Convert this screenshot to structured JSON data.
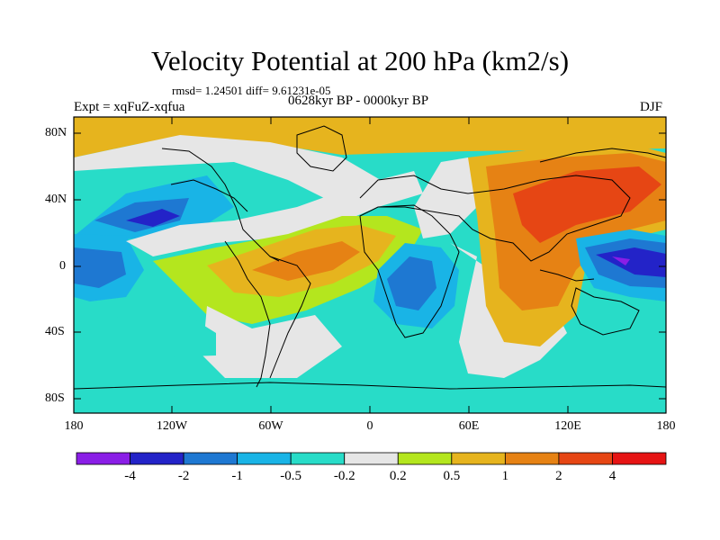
{
  "title": "Velocity Potential at 200 hPa (km2/s)",
  "stats": "rmsd= 1.24501 diff= 9.61231e-05",
  "experiment": "Expt = xqFuZ-xqfua",
  "period": "0628kyr BP - 0000kyr BP",
  "season": "DJF",
  "lat_labels": [
    "80N",
    "40N",
    "0",
    "40S",
    "80S"
  ],
  "lon_labels": [
    "180",
    "120W",
    "60W",
    "0",
    "60E",
    "120E",
    "180"
  ],
  "colorbar": {
    "labels": [
      "-4",
      "-2",
      "-1",
      "-0.5",
      "-0.2",
      "0.2",
      "0.5",
      "1",
      "2",
      "4"
    ],
    "colors": [
      "#8a1ee6",
      "#2323c8",
      "#1e78d2",
      "#19b4e6",
      "#28dcc8",
      "#e6e6e6",
      "#b4e61e",
      "#e6b41e",
      "#e68214",
      "#e64614",
      "#e61414"
    ]
  }
}
